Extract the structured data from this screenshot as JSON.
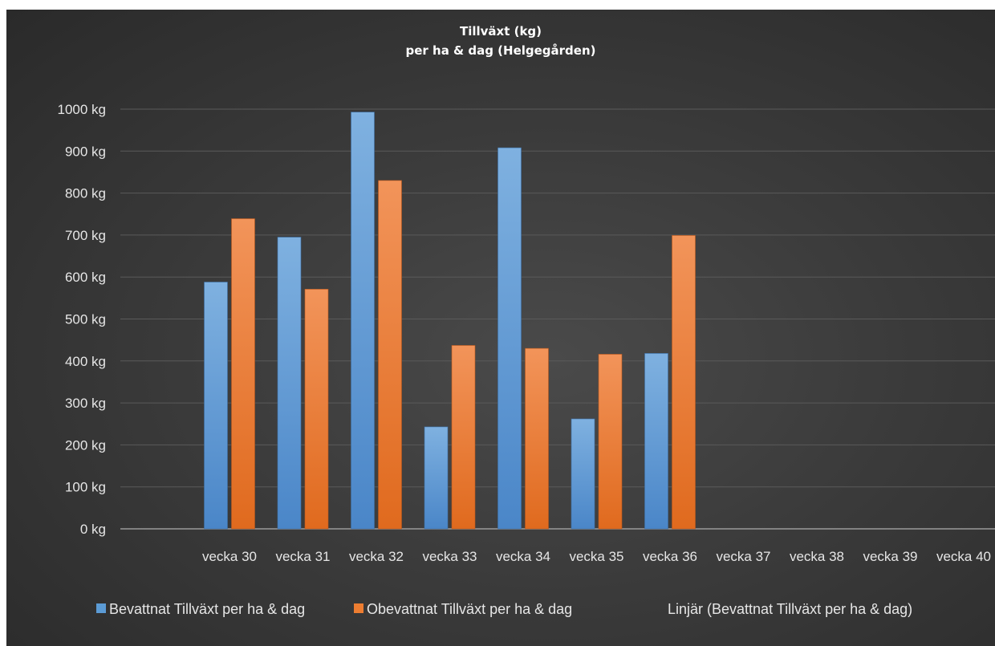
{
  "chart_data": {
    "type": "bar",
    "title": "Tillväxt (kg)",
    "subtitle": "per ha & dag (Helgegården)",
    "xlabel": "",
    "ylabel": "",
    "categories": [
      "vecka 30",
      "vecka 31",
      "vecka 32",
      "vecka 33",
      "vecka 34",
      "vecka 35",
      "vecka 36",
      "vecka 37",
      "vecka 38",
      "vecka 39",
      "vecka 40"
    ],
    "ylim": [
      0,
      1000
    ],
    "ytick_step": 100,
    "ytick_labels": [
      "0 kg",
      "100 kg",
      "200 kg",
      "300 kg",
      "400 kg",
      "500 kg",
      "600 kg",
      "700 kg",
      "800 kg",
      "900 kg",
      "1000 kg"
    ],
    "grid": true,
    "legend_position": "bottom",
    "series": [
      {
        "name": "Bevattnat Tillväxt per ha & dag",
        "color": "#5b9bd5",
        "values": [
          588,
          695,
          993,
          243,
          908,
          262,
          418,
          null,
          null,
          null,
          null
        ]
      },
      {
        "name": "Obevattnat Tillväxt per ha & dag",
        "color": "#ed7d31",
        "values": [
          739,
          571,
          830,
          437,
          430,
          416,
          699,
          null,
          null,
          null,
          null
        ]
      }
    ],
    "legend": [
      {
        "label": "Bevattnat Tillväxt per ha & dag",
        "color": "#5b9bd5",
        "marker": "square"
      },
      {
        "label": "Obevattnat Tillväxt per ha & dag",
        "color": "#ed7d31",
        "marker": "square"
      },
      {
        "label": "Linjär (Bevattnat Tillväxt per ha & dag)",
        "color": "#5b9bd5",
        "marker": "none"
      }
    ]
  }
}
